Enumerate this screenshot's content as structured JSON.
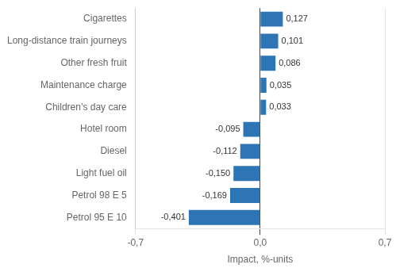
{
  "chart_data": {
    "type": "bar",
    "orientation": "horizontal",
    "categories": [
      "Petrol 95 E 10",
      "Petrol 98 E 5",
      "Light fuel oil",
      "Diesel",
      "Hotel room",
      "Children’s day care",
      "Maintenance charge",
      "Other fresh fruit",
      "Long-distance train journeys",
      "Cigarettes"
    ],
    "values": [
      -0.401,
      -0.169,
      -0.15,
      -0.112,
      -0.095,
      0.033,
      0.035,
      0.086,
      0.101,
      0.127
    ],
    "value_labels": [
      "-0,401",
      "-0,169",
      "-0,150",
      "-0,112",
      "-0,095",
      "0,033",
      "0,035",
      "0,086",
      "0,101",
      "0,127"
    ],
    "data_labels": true,
    "color": "#2e75b6",
    "xlabel": "Impact, %-units",
    "xlim": [
      -0.7,
      0.7
    ],
    "xticks": [
      {
        "value": -0.7,
        "label": "-0,7"
      },
      {
        "value": 0.0,
        "label": "0,0"
      },
      {
        "value": 0.7,
        "label": "0,7"
      }
    ],
    "grid": true
  }
}
